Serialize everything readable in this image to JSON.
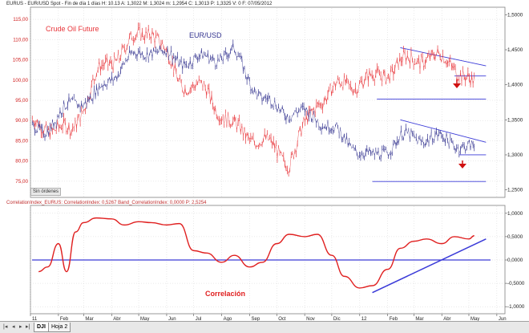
{
  "header": {
    "top_info": "EURUS - EUR/USD Spot - Fin de día 1 días  H: 10.13  A: 1,3022  M: 1,3024  m: 1,2954  C: 1,3013  P: 1,3325  V: 0  F: 07/05/2012",
    "bottom_info": "CorrelationIndex_EURUS: CorrelationIndex: 0,5267  Band_CorrelationIndex: 0,0000  P: 2,5254"
  },
  "labels": {
    "crude": "Crude Oil Future",
    "eurusd": "EUR/USD",
    "correlacion": "Correlación",
    "sin_ordenes": "Sin órdenes"
  },
  "tabs": {
    "dji": "DJI",
    "hoja2": "Hoja 2"
  },
  "colors": {
    "crude": "#e8353a",
    "eurusd": "#33338f",
    "trend": "#3a3ad8",
    "correlation": "#e02020",
    "arrow": "#d01010",
    "grid": "#c9c9c9"
  },
  "chart_data": [
    {
      "type": "line",
      "title": "",
      "x": [
        "2011-01",
        "2011-02",
        "2011-03",
        "2011-04",
        "2011-05",
        "2011-06",
        "2011-07",
        "2011-08",
        "2011-09",
        "2011-10",
        "2011-11",
        "2011-12",
        "2012-01",
        "2012-02",
        "2012-03",
        "2012-04",
        "2012-05"
      ],
      "x_tick_labels": [
        "11",
        "Feb",
        "Mar",
        "Abr",
        "May",
        "Jun",
        "Jul",
        "Ago",
        "Sep",
        "Oct",
        "Nov",
        "Dic",
        "12",
        "Feb",
        "Mar",
        "Abr",
        "May",
        "Jun"
      ],
      "series": [
        {
          "name": "Crude Oil Future",
          "axis": "left",
          "values": [
            89,
            87,
            101,
            108,
            113,
            100,
            97,
            88,
            85,
            80,
            95,
            99,
            100,
            104,
            106,
            104,
            96
          ]
        },
        {
          "name": "EUR/USD",
          "axis": "right",
          "values": [
            1.335,
            1.372,
            1.385,
            1.432,
            1.452,
            1.434,
            1.437,
            1.446,
            1.378,
            1.361,
            1.355,
            1.322,
            1.293,
            1.324,
            1.325,
            1.319,
            1.301
          ]
        }
      ],
      "y_left": {
        "ylim": [
          72,
          117
        ],
        "ticks": [
          "115,00",
          "110,00",
          "105,00",
          "100,00",
          "95,00",
          "90,00",
          "85,00",
          "80,00",
          "75,00"
        ]
      },
      "y_right": {
        "ylim": [
          1.245,
          1.505
        ],
        "ticks": [
          "1,5000",
          "1,4500",
          "1,4000",
          "1,3500",
          "1,3000",
          "1,2500"
        ]
      },
      "trendlines": [
        {
          "series": "Crude Oil Future",
          "kind": "resistance",
          "from": [
            "2012-02",
            108
          ],
          "to": [
            "2012-05-20",
            103.5
          ]
        },
        {
          "series": "Crude Oil Future",
          "kind": "support",
          "from": [
            "2012-04",
            101
          ],
          "to": [
            "2012-05-20",
            101
          ]
        },
        {
          "series": "Crude Oil Future",
          "kind": "support",
          "from": [
            "2012-01-20",
            95.3
          ],
          "to": [
            "2012-05-20",
            95.3
          ]
        },
        {
          "series": "EUR/USD",
          "kind": "resistance",
          "from": [
            "2012-02",
            1.35
          ],
          "to": [
            "2012-05-20",
            1.318
          ]
        },
        {
          "series": "EUR/USD",
          "kind": "support",
          "from": [
            "2012-04-20",
            1.3
          ],
          "to": [
            "2012-05-20",
            1.3
          ]
        },
        {
          "series": "EUR/USD",
          "kind": "support",
          "from": [
            "2012-01",
            1.262
          ],
          "to": [
            "2012-05-20",
            1.262
          ]
        }
      ],
      "grid": true
    },
    {
      "type": "line",
      "title": "",
      "series": [
        {
          "name": "CorrelationIndex",
          "x": [
            "2011-01-10",
            "2011-01-20",
            "2011-02-01",
            "2011-02-10",
            "2011-02-20",
            "2011-03-01",
            "2011-03-15",
            "2011-04-01",
            "2011-04-15",
            "2011-05-01",
            "2011-05-15",
            "2011-06-01",
            "2011-06-15",
            "2011-07-01",
            "2011-07-15",
            "2011-08-01",
            "2011-08-15",
            "2011-09-01",
            "2011-09-15",
            "2011-10-01",
            "2011-10-15",
            "2011-11-01",
            "2011-11-15",
            "2011-12-01",
            "2011-12-15",
            "2012-01-01",
            "2012-01-15",
            "2012-02-01",
            "2012-02-15",
            "2012-03-01",
            "2012-03-15",
            "2012-04-01",
            "2012-04-15",
            "2012-05-01",
            "2012-05-07"
          ],
          "values": [
            -0.25,
            -0.15,
            0.35,
            -0.25,
            0.6,
            0.8,
            0.9,
            0.88,
            0.75,
            0.82,
            0.8,
            0.75,
            0.78,
            0.2,
            0.15,
            -0.05,
            0.1,
            -0.15,
            -0.05,
            0.35,
            0.55,
            0.5,
            0.55,
            0.1,
            -0.35,
            -0.6,
            -0.55,
            -0.2,
            0.25,
            0.4,
            0.45,
            0.35,
            0.5,
            0.45,
            0.52
          ]
        }
      ],
      "band": 0.0,
      "trendline": {
        "from": [
          "2012-01-15",
          -0.7
        ],
        "to": [
          "2012-05-20",
          0.45
        ]
      },
      "y": {
        "ylim": [
          -1.1,
          1.1
        ],
        "ticks": [
          "1,0000",
          "0,5000",
          "0,0000",
          "-0,5000",
          "-1,0000"
        ]
      },
      "grid": true
    }
  ]
}
